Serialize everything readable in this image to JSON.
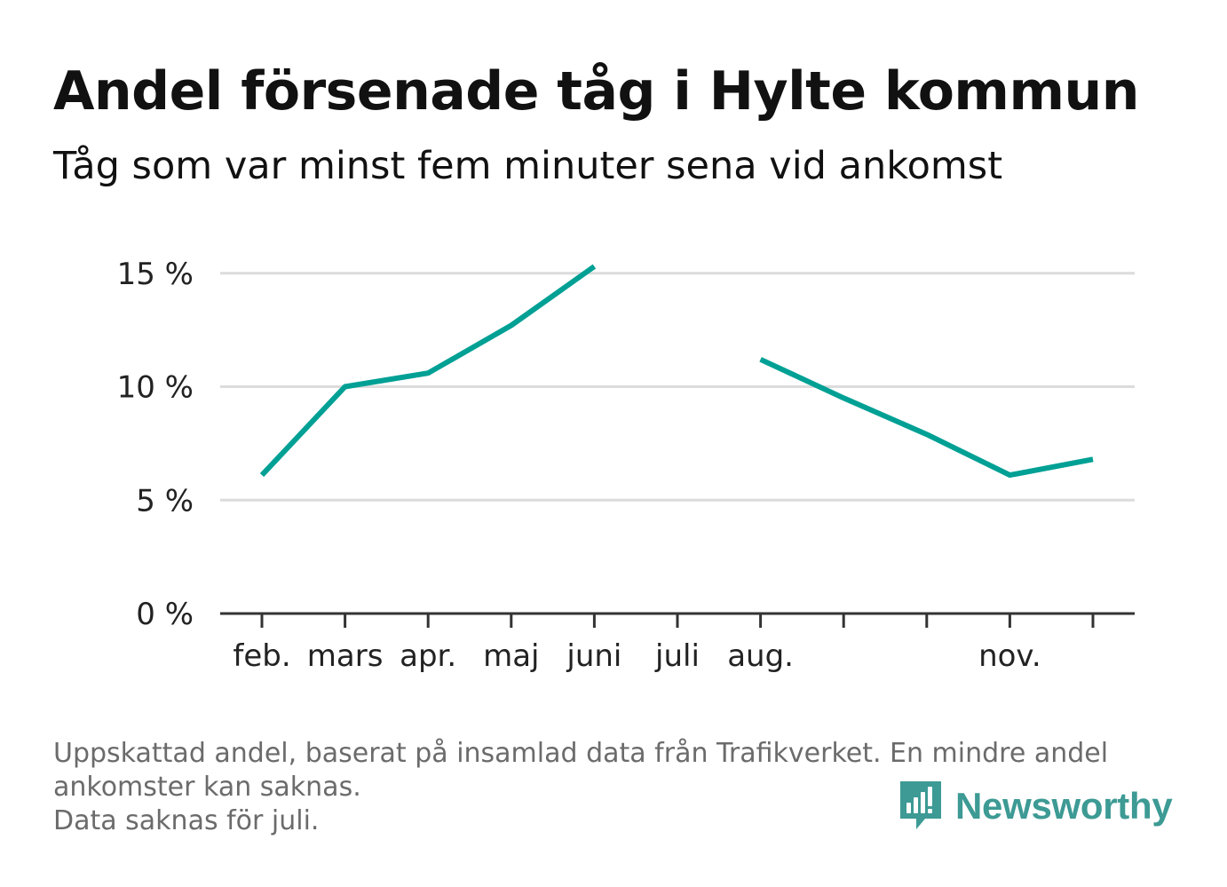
{
  "header": {
    "title": "Andel försenade tåg i Hylte kommun",
    "subtitle": "Tåg som var minst fem minuter sena vid ankomst"
  },
  "footer": {
    "note_line1": "Uppskattad andel, baserat på insamlad data från Trafikverket. En mindre andel",
    "note_line2": "ankomster kan saknas.",
    "note_line3": "Data saknas för juli."
  },
  "brand": {
    "name": "Newsworthy",
    "color": "#3d9a94",
    "icon": "newsworthy-logo-icon"
  },
  "chart_data": {
    "type": "line",
    "categories": [
      "feb.",
      "mars",
      "apr.",
      "maj",
      "juni",
      "juli",
      "aug.",
      "",
      "",
      "nov.",
      ""
    ],
    "series": [
      {
        "values": [
          6.1,
          10.0,
          10.6,
          12.7,
          15.3,
          null,
          11.2,
          9.5,
          7.9,
          6.1,
          6.8
        ],
        "color": "#00a095"
      }
    ],
    "yticks": [
      0,
      5,
      10,
      15
    ],
    "ytick_labels": [
      "0 %",
      "5 %",
      "10 %",
      "15 %"
    ],
    "ylim": [
      0,
      16
    ],
    "grid": true
  }
}
